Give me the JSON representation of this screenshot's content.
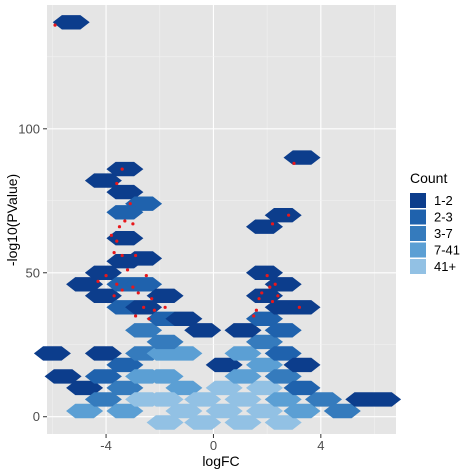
{
  "chart_data": {
    "type": "hexbin",
    "xlabel": "logFC",
    "ylabel": "-log10(PValue)",
    "xlim": [
      -6.2,
      6.8
    ],
    "ylim": [
      -6,
      143
    ],
    "x_ticks": [
      -4,
      0,
      4
    ],
    "y_ticks": [
      0,
      50,
      100
    ],
    "x_tick_labels": [
      "-4",
      "0",
      "4"
    ],
    "y_tick_labels": [
      "0",
      "50",
      "100"
    ],
    "grid": true,
    "panel_background": "#e5e5e5",
    "legend": {
      "title": "Count",
      "placement": "right",
      "entries": [
        {
          "label": "1-2",
          "color": "#0c3d8c",
          "level": 1
        },
        {
          "label": "2-3",
          "color": "#1f62ad",
          "level": 2
        },
        {
          "label": "3-7",
          "color": "#357bbd",
          "level": 3
        },
        {
          "label": "7-41",
          "color": "#5b9fd4",
          "level": 4
        },
        {
          "label": "41+",
          "color": "#92c1e4",
          "level": 5
        }
      ]
    },
    "hexbins": [
      {
        "x": -5.3,
        "y": 137,
        "level": 1
      },
      {
        "x": 3.3,
        "y": 90,
        "level": 1
      },
      {
        "x": -4.1,
        "y": 82,
        "level": 1
      },
      {
        "x": -3.3,
        "y": 86,
        "level": 1
      },
      {
        "x": -3.3,
        "y": 78,
        "level": 1
      },
      {
        "x": -2.6,
        "y": 74,
        "level": 2
      },
      {
        "x": -3.3,
        "y": 71,
        "level": 2
      },
      {
        "x": -3.3,
        "y": 62,
        "level": 1
      },
      {
        "x": 2.6,
        "y": 70,
        "level": 1
      },
      {
        "x": 1.9,
        "y": 66,
        "level": 1
      },
      {
        "x": -3.3,
        "y": 54,
        "level": 1
      },
      {
        "x": -2.6,
        "y": 55,
        "level": 1
      },
      {
        "x": -4.1,
        "y": 50,
        "level": 1
      },
      {
        "x": -4.8,
        "y": 46,
        "level": 1
      },
      {
        "x": -4.1,
        "y": 42,
        "level": 1
      },
      {
        "x": -3.3,
        "y": 46,
        "level": 2
      },
      {
        "x": -2.6,
        "y": 46,
        "level": 2
      },
      {
        "x": -3.3,
        "y": 38,
        "level": 2
      },
      {
        "x": -2.6,
        "y": 38,
        "level": 1
      },
      {
        "x": -1.8,
        "y": 42,
        "level": 1
      },
      {
        "x": -2.6,
        "y": 30,
        "level": 3
      },
      {
        "x": -1.8,
        "y": 34,
        "level": 2
      },
      {
        "x": -1.1,
        "y": 34,
        "level": 1
      },
      {
        "x": -0.4,
        "y": 30,
        "level": 1
      },
      {
        "x": -6.0,
        "y": 22,
        "level": 1
      },
      {
        "x": -4.1,
        "y": 22,
        "level": 1
      },
      {
        "x": -3.3,
        "y": 18,
        "level": 2
      },
      {
        "x": -2.6,
        "y": 22,
        "level": 3
      },
      {
        "x": -1.8,
        "y": 22,
        "level": 4
      },
      {
        "x": -1.1,
        "y": 22,
        "level": 4
      },
      {
        "x": -1.8,
        "y": 26,
        "level": 3
      },
      {
        "x": 0.4,
        "y": 18,
        "level": 1
      },
      {
        "x": -5.6,
        "y": 14,
        "level": 1
      },
      {
        "x": -4.8,
        "y": 10,
        "level": 1
      },
      {
        "x": -4.1,
        "y": 14,
        "level": 2
      },
      {
        "x": -3.3,
        "y": 10,
        "level": 3
      },
      {
        "x": -2.6,
        "y": 14,
        "level": 4
      },
      {
        "x": -1.8,
        "y": 14,
        "level": 4
      },
      {
        "x": -1.1,
        "y": 10,
        "level": 4
      },
      {
        "x": -4.8,
        "y": 2,
        "level": 4
      },
      {
        "x": -4.1,
        "y": 6,
        "level": 3
      },
      {
        "x": -3.3,
        "y": 2,
        "level": 4
      },
      {
        "x": -2.6,
        "y": 6,
        "level": 5
      },
      {
        "x": -1.8,
        "y": 6,
        "level": 5
      },
      {
        "x": -1.1,
        "y": 2,
        "level": 5
      },
      {
        "x": -0.4,
        "y": 6,
        "level": 5
      },
      {
        "x": 0.4,
        "y": 2,
        "level": 5
      },
      {
        "x": 0.4,
        "y": 10,
        "level": 5
      },
      {
        "x": -1.8,
        "y": -2,
        "level": 5
      },
      {
        "x": -0.4,
        "y": -2,
        "level": 5
      },
      {
        "x": 1.1,
        "y": -2,
        "level": 5
      },
      {
        "x": 1.1,
        "y": 6,
        "level": 5
      },
      {
        "x": 1.9,
        "y": 10,
        "level": 5
      },
      {
        "x": 1.9,
        "y": 2,
        "level": 5
      },
      {
        "x": 2.6,
        "y": 6,
        "level": 4
      },
      {
        "x": 2.6,
        "y": -2,
        "level": 5
      },
      {
        "x": 3.3,
        "y": 2,
        "level": 4
      },
      {
        "x": 4.1,
        "y": 6,
        "level": 3
      },
      {
        "x": 4.8,
        "y": 2,
        "level": 3
      },
      {
        "x": 5.6,
        "y": 6,
        "level": 1
      },
      {
        "x": 6.3,
        "y": 6,
        "level": 1
      },
      {
        "x": 1.1,
        "y": 14,
        "level": 4
      },
      {
        "x": 1.9,
        "y": 18,
        "level": 4
      },
      {
        "x": 2.6,
        "y": 14,
        "level": 3
      },
      {
        "x": 1.1,
        "y": 22,
        "level": 4
      },
      {
        "x": 1.9,
        "y": 26,
        "level": 3
      },
      {
        "x": 2.6,
        "y": 22,
        "level": 2
      },
      {
        "x": 3.3,
        "y": 18,
        "level": 1
      },
      {
        "x": 3.3,
        "y": 10,
        "level": 2
      },
      {
        "x": 1.1,
        "y": 30,
        "level": 1
      },
      {
        "x": 1.9,
        "y": 34,
        "level": 2
      },
      {
        "x": 2.6,
        "y": 30,
        "level": 2
      },
      {
        "x": 1.9,
        "y": 42,
        "level": 1
      },
      {
        "x": 2.6,
        "y": 38,
        "level": 1
      },
      {
        "x": 3.3,
        "y": 38,
        "level": 1
      },
      {
        "x": 1.9,
        "y": 50,
        "level": 1
      },
      {
        "x": 2.6,
        "y": 46,
        "level": 1
      }
    ],
    "points": [
      {
        "x": -5.9,
        "y": 136
      },
      {
        "x": 3.0,
        "y": 88
      },
      {
        "x": -3.6,
        "y": 81
      },
      {
        "x": -3.4,
        "y": 86
      },
      {
        "x": -3.1,
        "y": 74
      },
      {
        "x": -3.3,
        "y": 68
      },
      {
        "x": -3.5,
        "y": 66
      },
      {
        "x": -3.0,
        "y": 67
      },
      {
        "x": -3.8,
        "y": 63
      },
      {
        "x": -3.6,
        "y": 61
      },
      {
        "x": 2.8,
        "y": 70
      },
      {
        "x": 2.2,
        "y": 67
      },
      {
        "x": -3.7,
        "y": 57
      },
      {
        "x": -3.4,
        "y": 56
      },
      {
        "x": -2.9,
        "y": 56
      },
      {
        "x": -3.2,
        "y": 51
      },
      {
        "x": -2.5,
        "y": 49
      },
      {
        "x": -4.0,
        "y": 49
      },
      {
        "x": -4.3,
        "y": 47
      },
      {
        "x": -3.6,
        "y": 46
      },
      {
        "x": -3.0,
        "y": 45
      },
      {
        "x": -3.4,
        "y": 44
      },
      {
        "x": -2.8,
        "y": 43
      },
      {
        "x": -3.7,
        "y": 42
      },
      {
        "x": -2.3,
        "y": 41
      },
      {
        "x": -2.6,
        "y": 38
      },
      {
        "x": -2.2,
        "y": 37
      },
      {
        "x": -1.8,
        "y": 38
      },
      {
        "x": -2.9,
        "y": 35
      },
      {
        "x": -2.4,
        "y": 34
      },
      {
        "x": 2.0,
        "y": 49
      },
      {
        "x": 2.3,
        "y": 46
      },
      {
        "x": 2.1,
        "y": 45
      },
      {
        "x": 1.8,
        "y": 43
      },
      {
        "x": 2.4,
        "y": 42
      },
      {
        "x": 1.7,
        "y": 41
      },
      {
        "x": 2.2,
        "y": 40
      },
      {
        "x": 3.2,
        "y": 38
      },
      {
        "x": 1.6,
        "y": 37
      },
      {
        "x": 1.5,
        "y": 35
      }
    ]
  }
}
